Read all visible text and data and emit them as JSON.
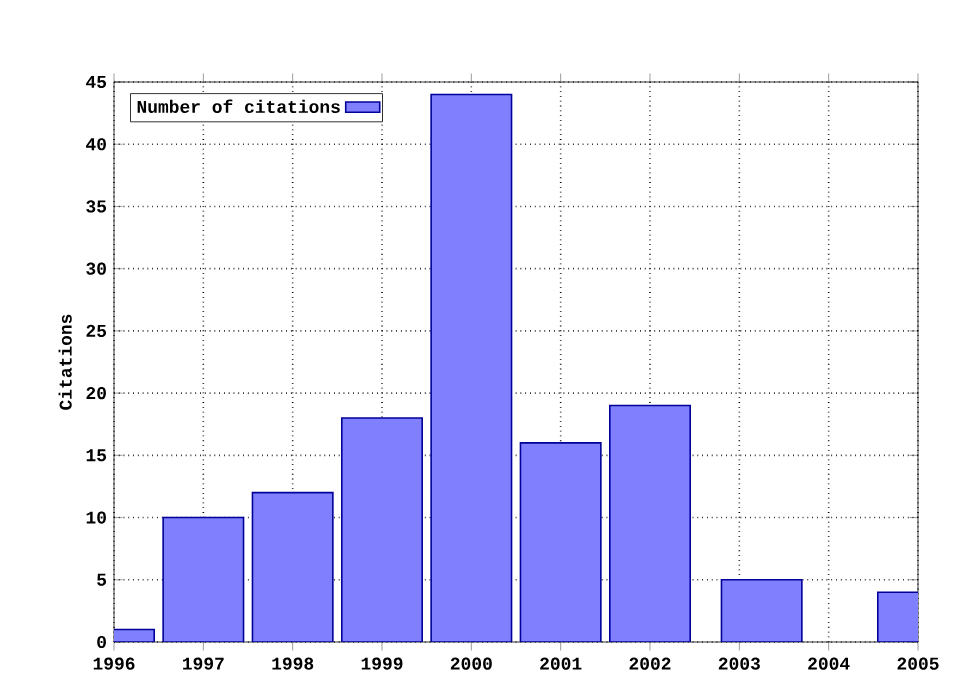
{
  "chart_data": {
    "type": "bar",
    "ylabel": "Citations",
    "x": [
      1996,
      1997,
      1998,
      1999,
      2000,
      2001,
      2002,
      2003.25,
      2005
    ],
    "series": [
      {
        "name": "Number of citations",
        "color": "#8080ff",
        "values": [
          1,
          10,
          12,
          18,
          44,
          16,
          19,
          5,
          4
        ]
      }
    ],
    "xlim": [
      1996,
      2005
    ],
    "xticks": [
      1996,
      1997,
      1998,
      1999,
      2000,
      2001,
      2002,
      2003,
      2004,
      2005
    ],
    "ylim": [
      0,
      45
    ],
    "yticks": [
      0,
      5,
      10,
      15,
      20,
      25,
      30,
      35,
      40,
      45
    ],
    "grid": true,
    "legend": "top left"
  }
}
